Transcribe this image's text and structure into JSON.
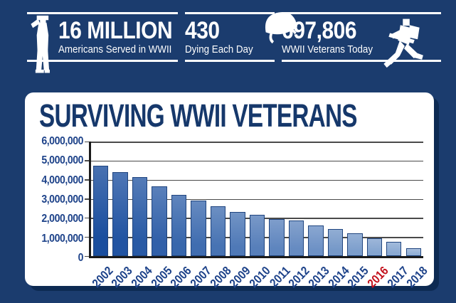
{
  "header": {
    "stats": [
      {
        "icon": "saluting-soldier-icon",
        "number": "16 MILLION",
        "label": "Americans Served in WWII"
      },
      {
        "icon": "helmet-icon",
        "number": "430",
        "label": "Dying Each Day"
      },
      {
        "icon": "running-soldier-icon",
        "number": "697,806",
        "label": "WWII Veterans Today"
      }
    ]
  },
  "chart_data": {
    "type": "bar",
    "title": "SURVIVING WWII VETERANS",
    "categories": [
      "2002",
      "2003",
      "2004",
      "2005",
      "2006",
      "2007",
      "2008",
      "2009",
      "2010",
      "2011",
      "2012",
      "2013",
      "2014",
      "2015",
      "2016",
      "2017",
      "2018"
    ],
    "values": [
      4750000,
      4400000,
      4150000,
      3650000,
      3200000,
      2900000,
      2600000,
      2300000,
      2150000,
      1950000,
      1850000,
      1600000,
      1400000,
      1200000,
      950000,
      750000,
      400000
    ],
    "xlabel": "",
    "ylabel": "",
    "ylim": [
      0,
      6000000
    ],
    "ytick_interval": 1000000,
    "ytick_labels": [
      "6,000,000",
      "5,000,000",
      "4,000,000",
      "3,000,000",
      "2,000,000",
      "1,000,000",
      "0"
    ],
    "grid": true,
    "legend": false,
    "highlight_category": "2016",
    "highlight_color": "#C3111C",
    "bar_color_start": "#1A4E9E",
    "bar_color_end": "#93B0D6",
    "bar_border_color": "#20457F",
    "gridline_color": "#4A4A4A",
    "axis_color": "#1A1A1A",
    "label_color": "#1D4289"
  },
  "colors": {
    "background": "#1B3C6E",
    "card": "#FFFFFF",
    "card_shadow": "#0D2A52",
    "title": "#16386B",
    "header_text": "#FFFFFF",
    "header_rule": "#FFFFFF"
  }
}
